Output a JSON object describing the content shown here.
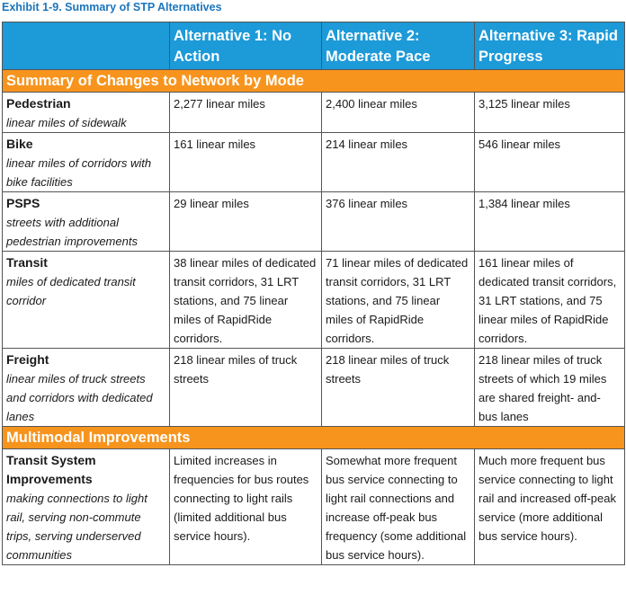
{
  "title": "Exhibit 1-9. Summary of STP Alternatives",
  "table": {
    "header": [
      "",
      "Alternative 1: No Action",
      "Alternative 2: Moderate Pace",
      "Alternative 3: Rapid Progress"
    ],
    "sections": [
      {
        "title": "Summary of Changes to Network by Mode",
        "rows": [
          {
            "label": "Pedestrian",
            "description": "linear miles of sidewalk",
            "cells": [
              "2,277 linear miles",
              "2,400 linear miles",
              "3,125 linear miles"
            ]
          },
          {
            "label": "Bike",
            "description": "linear miles of corridors with bike facilities",
            "cells": [
              "161 linear miles",
              "214 linear miles",
              "546 linear miles"
            ]
          },
          {
            "label": "PSPS",
            "description": "streets with additional pedestrian improvements",
            "cells": [
              "29 linear miles",
              "376 linear miles",
              "1,384 linear miles"
            ]
          },
          {
            "label": "Transit",
            "description": "miles of dedicated transit corridor",
            "cells": [
              "38 linear miles of dedicated transit corridors, 31 LRT stations, and 75 linear miles of RapidRide corridors.",
              "71 linear miles of dedicated transit corridors, 31 LRT stations, and 75 linear miles of RapidRide corridors.",
              "161 linear miles of dedicated transit corridors, 31 LRT stations, and 75 linear miles of RapidRide corridors."
            ]
          },
          {
            "label": "Freight",
            "description": "linear miles of truck streets and corridors with dedicated lanes",
            "cells": [
              "218 linear miles of truck streets",
              "218 linear miles of truck streets",
              "218 linear miles of truck streets of which 19 miles are shared freight- and- bus lanes"
            ]
          }
        ]
      },
      {
        "title": "Multimodal Improvements",
        "rows": [
          {
            "label": "Transit System Improvements",
            "description": "making connections to light rail, serving non-commute trips, serving underserved communities",
            "cells": [
              "Limited increases in frequencies for bus routes connecting to light rails (limited additional bus service hours).",
              "Somewhat more frequent bus service connecting to light rail connections and increase off-peak bus frequency (some additional bus service hours).",
              "Much more frequent bus service connecting to light rail and increased off-peak service (more additional bus service hours)."
            ]
          }
        ]
      }
    ]
  }
}
